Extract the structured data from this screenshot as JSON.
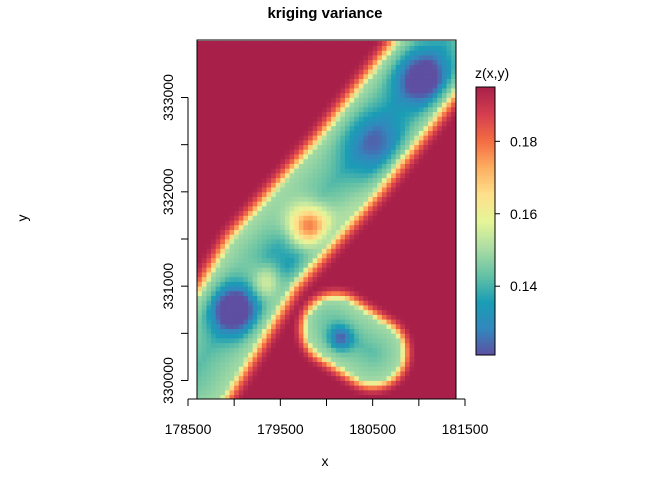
{
  "chart_data": {
    "type": "heatmap",
    "title": "kriging variance",
    "xlabel": "x",
    "ylabel": "y",
    "xlim": [
      178500,
      181500
    ],
    "ylim": [
      329800,
      333600
    ],
    "x_ticks": [
      178500,
      179500,
      180500,
      181500
    ],
    "x_tick_labels": [
      "178500",
      "179500",
      "180500",
      "181500"
    ],
    "y_ticks": [
      330000,
      331000,
      332000,
      333000
    ],
    "y_tick_labels": [
      "330000",
      "331000",
      "332000",
      "333000"
    ],
    "legend": {
      "title": "z(x,y)",
      "placement": "right",
      "range": [
        0.121,
        0.195
      ],
      "ticks": [
        0.14,
        0.16,
        0.18
      ],
      "tick_labels": [
        "0.14",
        "0.16",
        "0.18"
      ],
      "palette": [
        "#5e4fa2",
        "#3288bd",
        "#1a9db5",
        "#66c2a5",
        "#abdda4",
        "#e6f598",
        "#fee08b",
        "#fdae61",
        "#f46d43",
        "#d53e4f",
        "#a8204a"
      ]
    },
    "grid": false,
    "cell_size": 50,
    "x_extent": [
      178600,
      181400
    ],
    "y_extent": [
      329800,
      333600
    ],
    "sampled_values": [
      {
        "x": 178600,
        "y": 333500,
        "z": 0.195
      },
      {
        "x": 179000,
        "y": 330750,
        "z": 0.121
      },
      {
        "x": 179800,
        "y": 331650,
        "z": 0.158
      },
      {
        "x": 180200,
        "y": 330400,
        "z": 0.148
      },
      {
        "x": 180600,
        "y": 332500,
        "z": 0.133
      },
      {
        "x": 181050,
        "y": 333200,
        "z": 0.125
      },
      {
        "x": 181300,
        "y": 330000,
        "z": 0.195
      }
    ]
  }
}
